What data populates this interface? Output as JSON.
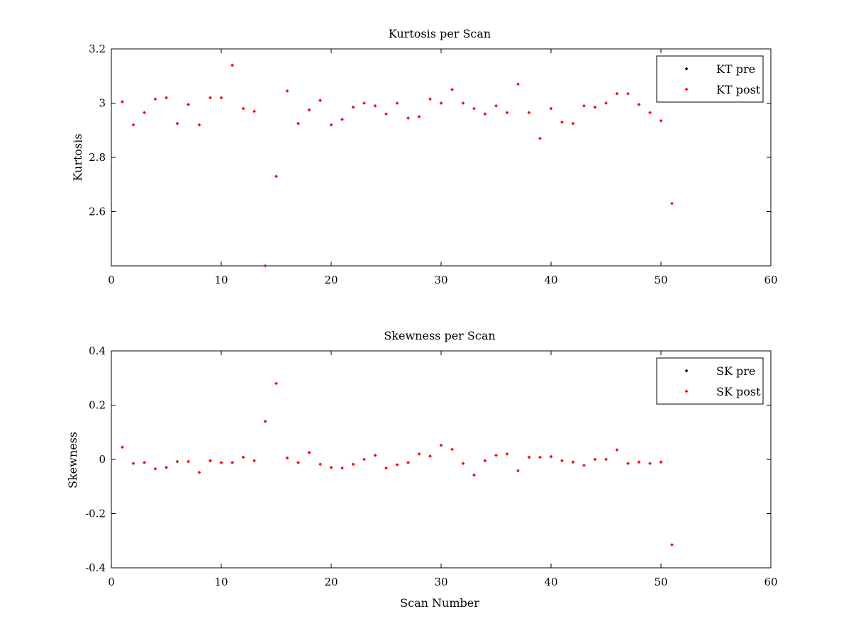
{
  "chart_data": [
    {
      "type": "scatter",
      "title": "Kurtosis per Scan",
      "xlabel": "",
      "ylabel": "Kurtosis",
      "xlim": [
        0,
        60
      ],
      "ylim": [
        2.4,
        3.2
      ],
      "xticks": [
        0,
        10,
        20,
        30,
        40,
        50,
        60
      ],
      "yticks": [
        2.6,
        2.8,
        3,
        3.2
      ],
      "xtick_labels": [
        "0",
        "10",
        "20",
        "30",
        "40",
        "50",
        "60"
      ],
      "ytick_labels": [
        "2.6",
        "2.8",
        "3",
        "3.2"
      ],
      "grid": false,
      "legend_position": "top-right",
      "series": [
        {
          "name": "KT pre",
          "color": "#000000",
          "marker": "dot",
          "x": [],
          "y": []
        },
        {
          "name": "KT post",
          "color": "#ff0000",
          "marker": "dot",
          "x": [
            1,
            2,
            3,
            4,
            5,
            6,
            7,
            8,
            9,
            10,
            11,
            12,
            13,
            14,
            15,
            16,
            17,
            18,
            19,
            20,
            21,
            22,
            23,
            24,
            25,
            26,
            27,
            28,
            29,
            30,
            31,
            32,
            33,
            34,
            35,
            36,
            37,
            38,
            39,
            40,
            41,
            42,
            43,
            44,
            45,
            46,
            47,
            48,
            49,
            50,
            51
          ],
          "y": [
            3.005,
            2.92,
            2.965,
            3.015,
            3.02,
            2.925,
            2.995,
            2.92,
            3.02,
            3.02,
            3.14,
            2.98,
            2.97,
            2.4,
            2.73,
            3.045,
            2.925,
            2.975,
            3.01,
            2.92,
            2.94,
            2.985,
            3.0,
            2.99,
            2.96,
            3.0,
            2.945,
            2.95,
            3.015,
            3.0,
            3.05,
            3.0,
            2.98,
            2.96,
            2.99,
            2.965,
            3.07,
            2.965,
            2.87,
            2.98,
            2.93,
            2.925,
            2.99,
            2.985,
            3.0,
            3.035,
            3.035,
            2.995,
            2.965,
            2.935,
            2.63
          ]
        }
      ]
    },
    {
      "type": "scatter",
      "title": "Skewness per Scan",
      "xlabel": "Scan Number",
      "ylabel": "Skewness",
      "xlim": [
        0,
        60
      ],
      "ylim": [
        -0.4,
        0.4
      ],
      "xticks": [
        0,
        10,
        20,
        30,
        40,
        50,
        60
      ],
      "yticks": [
        -0.4,
        -0.2,
        0,
        0.2,
        0.4
      ],
      "xtick_labels": [
        "0",
        "10",
        "20",
        "30",
        "40",
        "50",
        "60"
      ],
      "ytick_labels": [
        "-0.4",
        "-0.2",
        "0",
        "0.2",
        "0.4"
      ],
      "grid": false,
      "legend_position": "top-right",
      "series": [
        {
          "name": "SK pre",
          "color": "#000000",
          "marker": "dot",
          "x": [],
          "y": []
        },
        {
          "name": "SK post",
          "color": "#ff0000",
          "marker": "dot",
          "x": [
            1,
            2,
            3,
            4,
            5,
            6,
            7,
            8,
            9,
            10,
            11,
            12,
            13,
            14,
            15,
            16,
            17,
            18,
            19,
            20,
            21,
            22,
            23,
            24,
            25,
            26,
            27,
            28,
            29,
            30,
            31,
            32,
            33,
            34,
            35,
            36,
            37,
            38,
            39,
            40,
            41,
            42,
            43,
            44,
            45,
            46,
            47,
            48,
            49,
            50,
            51
          ],
          "y": [
            0.045,
            -0.015,
            -0.012,
            -0.035,
            -0.03,
            -0.008,
            -0.008,
            -0.048,
            -0.005,
            -0.012,
            -0.012,
            0.008,
            -0.005,
            0.14,
            0.28,
            0.005,
            -0.012,
            0.025,
            -0.018,
            -0.03,
            -0.032,
            -0.018,
            0.0,
            0.015,
            -0.032,
            -0.02,
            -0.012,
            0.02,
            0.012,
            0.052,
            0.037,
            -0.015,
            -0.058,
            -0.005,
            0.015,
            0.02,
            -0.042,
            0.008,
            0.008,
            0.01,
            -0.005,
            -0.01,
            -0.022,
            0.0,
            0.0,
            0.035,
            -0.015,
            -0.01,
            -0.015,
            -0.01,
            -0.315
          ]
        }
      ]
    }
  ]
}
